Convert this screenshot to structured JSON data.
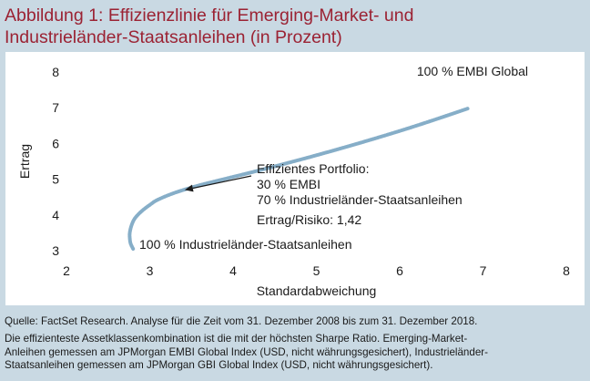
{
  "figure": {
    "title_line1": "Abbildung 1: Effizienzlinie für Emerging-Market- und",
    "title_line2": "Industrieländer-Staatsanleihen (in Prozent)",
    "source": "Quelle: FactSet Research. Analyse für die Zeit vom 31. Dezember 2008 bis zum 31. Dezember 2018.",
    "note_line1": "Die effizienteste Assetklassenkombination ist die mit der höchsten Sharpe Ratio. Emerging-Market-",
    "note_line2": "Anleihen gemessen am JPMorgan EMBI Global Index (USD, nicht währungsgesichert), Industrieländer-",
    "note_line3": "Staatsanleihen gemessen am JPMorgan GBI Global Index (USD, nicht währungsgesichert).",
    "colors": {
      "title": "#9b2233",
      "background": "#c9d9e3",
      "curve": "#86aec8",
      "panel": "#ffffff"
    }
  },
  "chart_data": {
    "type": "line",
    "xlabel": "Standardabweichung",
    "ylabel": "Ertrag",
    "xlim": [
      2,
      8
    ],
    "ylim": [
      3,
      8
    ],
    "x_ticks": [
      "2",
      "3",
      "4",
      "5",
      "6",
      "7",
      "8"
    ],
    "y_ticks": [
      "3",
      "4",
      "5",
      "6",
      "7",
      "8"
    ],
    "grid": false,
    "series": [
      {
        "x": [
          2.8,
          2.77,
          2.76,
          2.76,
          2.78,
          2.82,
          2.9,
          3.0,
          3.1,
          3.3,
          3.55,
          3.8,
          4.2,
          4.6,
          5.0,
          5.5,
          6.0,
          6.4,
          6.82
        ],
        "y": [
          3.05,
          3.2,
          3.35,
          3.5,
          3.7,
          3.9,
          4.1,
          4.28,
          4.43,
          4.62,
          4.8,
          4.95,
          5.18,
          5.42,
          5.67,
          6.0,
          6.35,
          6.65,
          6.98
        ]
      }
    ],
    "annotations": {
      "top_label": "100 % EMBI Global",
      "bottom_label": "100 % Industrieländer-Staatsanleihen",
      "efficient_line1": "Effizientes Portfolio:",
      "efficient_line2": "30 % EMBI",
      "efficient_line3": "70 % Industrieländer-Staatsanleihen",
      "ratio": "Ertrag/Risiko: 1,42",
      "arrow_target": {
        "x": 3.42,
        "y": 4.7
      }
    }
  }
}
